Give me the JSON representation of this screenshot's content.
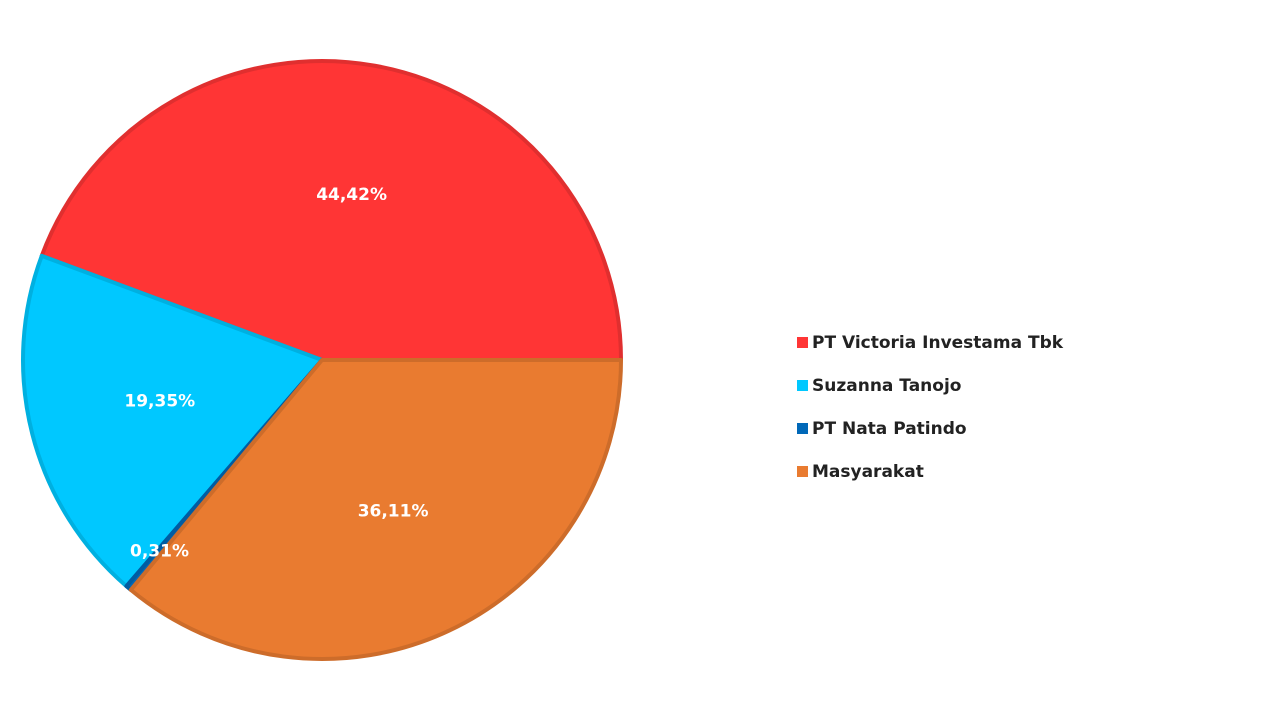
{
  "chart_data": {
    "type": "pie",
    "title": "",
    "categories": [
      "PT Victoria Investama Tbk",
      "Suzanna Tanojo",
      "PT Nata Patindo",
      "Masyarakat"
    ],
    "values": [
      44.42,
      19.35,
      0.31,
      36.11
    ],
    "data_labels": [
      "44,42%",
      "19,35%",
      "0,31%",
      "36,11%"
    ],
    "colors": [
      "#ff3535",
      "#00c8ff",
      "#0068b8",
      "#e97b30"
    ],
    "legend": {
      "position": "right",
      "entries": [
        "PT Victoria Investama Tbk",
        "Suzanna Tanojo",
        "PT Nata Patindo",
        "Masyarakat"
      ]
    }
  }
}
